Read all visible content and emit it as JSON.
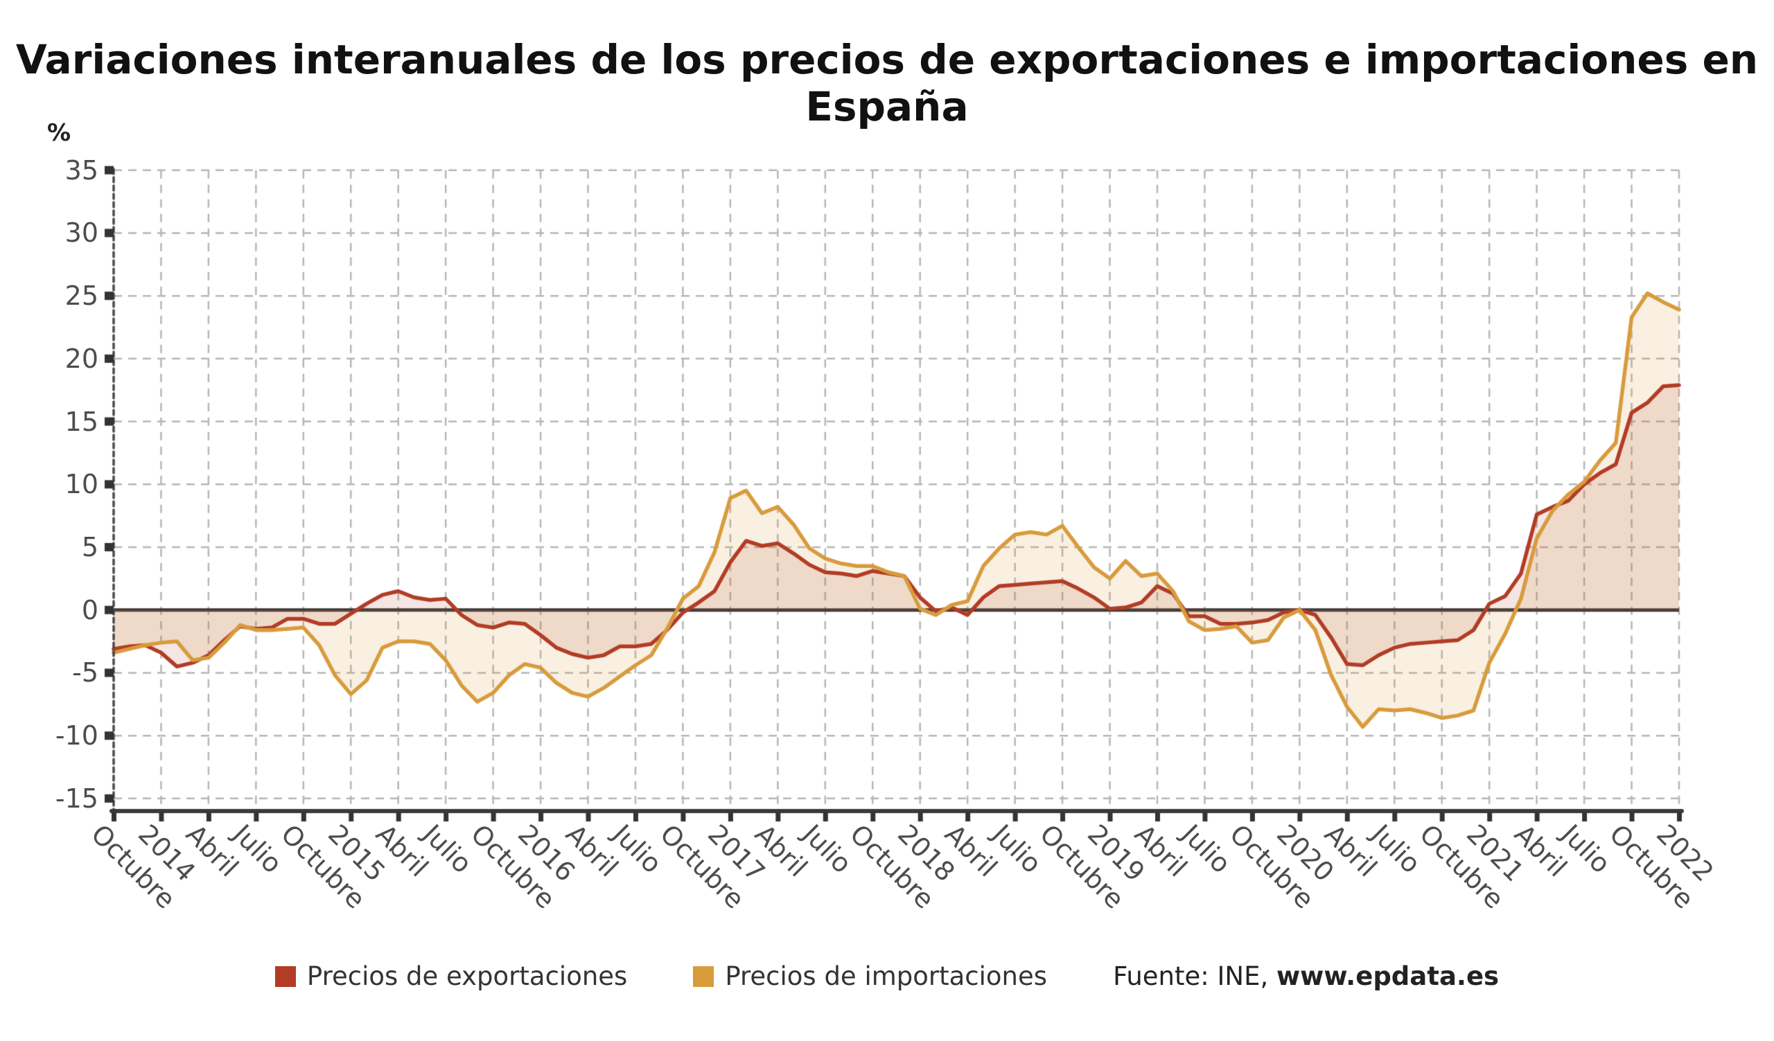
{
  "title": "Variaciones interanuales de los precios de exportaciones e importaciones en España",
  "y_axis": {
    "unit_label": "%",
    "min": -15,
    "max": 35,
    "ticks": [
      35,
      30,
      25,
      20,
      15,
      10,
      5,
      0,
      -5,
      -10,
      -15
    ]
  },
  "x_axis": {
    "months_per_tick": 3,
    "tick_labels": [
      "Octubre",
      "2014",
      "Abril",
      "Julio",
      "Octubre",
      "2015",
      "Abril",
      "Julio",
      "Octubre",
      "2016",
      "Abril",
      "Julio",
      "Octubre",
      "2017",
      "Abril",
      "Julio",
      "Octubre",
      "2018",
      "Abril",
      "Julio",
      "Octubre",
      "2019",
      "Abril",
      "Julio",
      "Octubre",
      "2020",
      "Abril",
      "Julio",
      "Octubre",
      "2021",
      "Abril",
      "Julio",
      "Octubre",
      "2022"
    ]
  },
  "legend": {
    "items": [
      {
        "label": "Precios de exportaciones",
        "color": "#b23c26"
      },
      {
        "label": "Precios de importaciones",
        "color": "#d89b3c"
      }
    ]
  },
  "source": {
    "prefix": "Fuente: INE, ",
    "link": "www.epdata.es"
  },
  "colors": {
    "export_line": "#b23c26",
    "import_line": "#d89b3c",
    "export_fill": "rgba(175,58,38,0.13)",
    "import_fill": "rgba(214,152,60,0.15)",
    "grid": "#b6b6b6",
    "axis": "#3a3a3a",
    "tick_text": "#4d4d4d"
  },
  "chart_data": {
    "type": "area",
    "frequency": "monthly",
    "x_start": "2013-10",
    "x_end": "2022-01",
    "title": "Variaciones interanuales de los precios de exportaciones e importaciones en España",
    "ylabel": "%",
    "ylim": [
      -15,
      35
    ],
    "grid": true,
    "legend_position": "bottom",
    "series": [
      {
        "name": "Precios de exportaciones",
        "color": "#b23c26",
        "values": [
          -3.1,
          -2.9,
          -2.8,
          -3.4,
          -4.5,
          -4.2,
          -3.6,
          -2.4,
          -1.3,
          -1.5,
          -1.4,
          -0.7,
          -0.7,
          -1.1,
          -1.1,
          -0.3,
          0.5,
          1.2,
          1.5,
          1.0,
          0.8,
          0.9,
          -0.4,
          -1.2,
          -1.4,
          -1.0,
          -1.1,
          -2.0,
          -3.0,
          -3.5,
          -3.8,
          -3.6,
          -2.9,
          -2.9,
          -2.7,
          -1.6,
          -0.2,
          0.6,
          1.5,
          3.8,
          5.5,
          5.1,
          5.3,
          4.5,
          3.6,
          3.0,
          2.9,
          2.7,
          3.1,
          2.9,
          2.7,
          1.0,
          -0.1,
          0.2,
          -0.4,
          1.0,
          1.9,
          2.0,
          2.1,
          2.2,
          2.3,
          1.7,
          1.0,
          0.1,
          0.2,
          0.6,
          1.9,
          1.3,
          -0.5,
          -0.5,
          -1.1,
          -1.1,
          -1.0,
          -0.8,
          -0.2,
          0.0,
          -0.4,
          -2.2,
          -4.3,
          -4.4,
          -3.6,
          -3.0,
          -2.7,
          -2.6,
          -2.5,
          -2.4,
          -1.6,
          0.5,
          1.1,
          2.9,
          7.6,
          8.2,
          8.7,
          10.0,
          10.9,
          11.6,
          15.7,
          16.5,
          17.8,
          17.9
        ]
      },
      {
        "name": "Precios de importaciones",
        "color": "#d89b3c",
        "values": [
          -3.4,
          -3.1,
          -2.8,
          -2.6,
          -2.5,
          -4.0,
          -3.8,
          -2.6,
          -1.2,
          -1.6,
          -1.6,
          -1.5,
          -1.4,
          -2.8,
          -5.2,
          -6.7,
          -5.6,
          -3.0,
          -2.5,
          -2.5,
          -2.7,
          -4.0,
          -6.0,
          -7.3,
          -6.6,
          -5.2,
          -4.3,
          -4.6,
          -5.8,
          -6.6,
          -6.9,
          -6.2,
          -5.3,
          -4.4,
          -3.6,
          -1.5,
          0.9,
          1.9,
          4.6,
          8.9,
          9.5,
          7.7,
          8.2,
          6.8,
          4.9,
          4.1,
          3.7,
          3.5,
          3.5,
          3.0,
          2.7,
          0.1,
          -0.4,
          0.4,
          0.7,
          3.5,
          4.9,
          6.0,
          6.2,
          6.0,
          6.7,
          5.0,
          3.4,
          2.5,
          3.9,
          2.7,
          2.9,
          1.5,
          -0.9,
          -1.6,
          -1.5,
          -1.3,
          -2.6,
          -2.4,
          -0.6,
          0.0,
          -1.6,
          -5.2,
          -7.7,
          -9.3,
          -7.9,
          -8.0,
          -7.9,
          -8.2,
          -8.6,
          -8.4,
          -8.0,
          -4.2,
          -1.9,
          0.9,
          5.7,
          7.9,
          9.2,
          10.2,
          11.9,
          13.3,
          23.3,
          25.2,
          24.5,
          23.9
        ]
      }
    ]
  }
}
